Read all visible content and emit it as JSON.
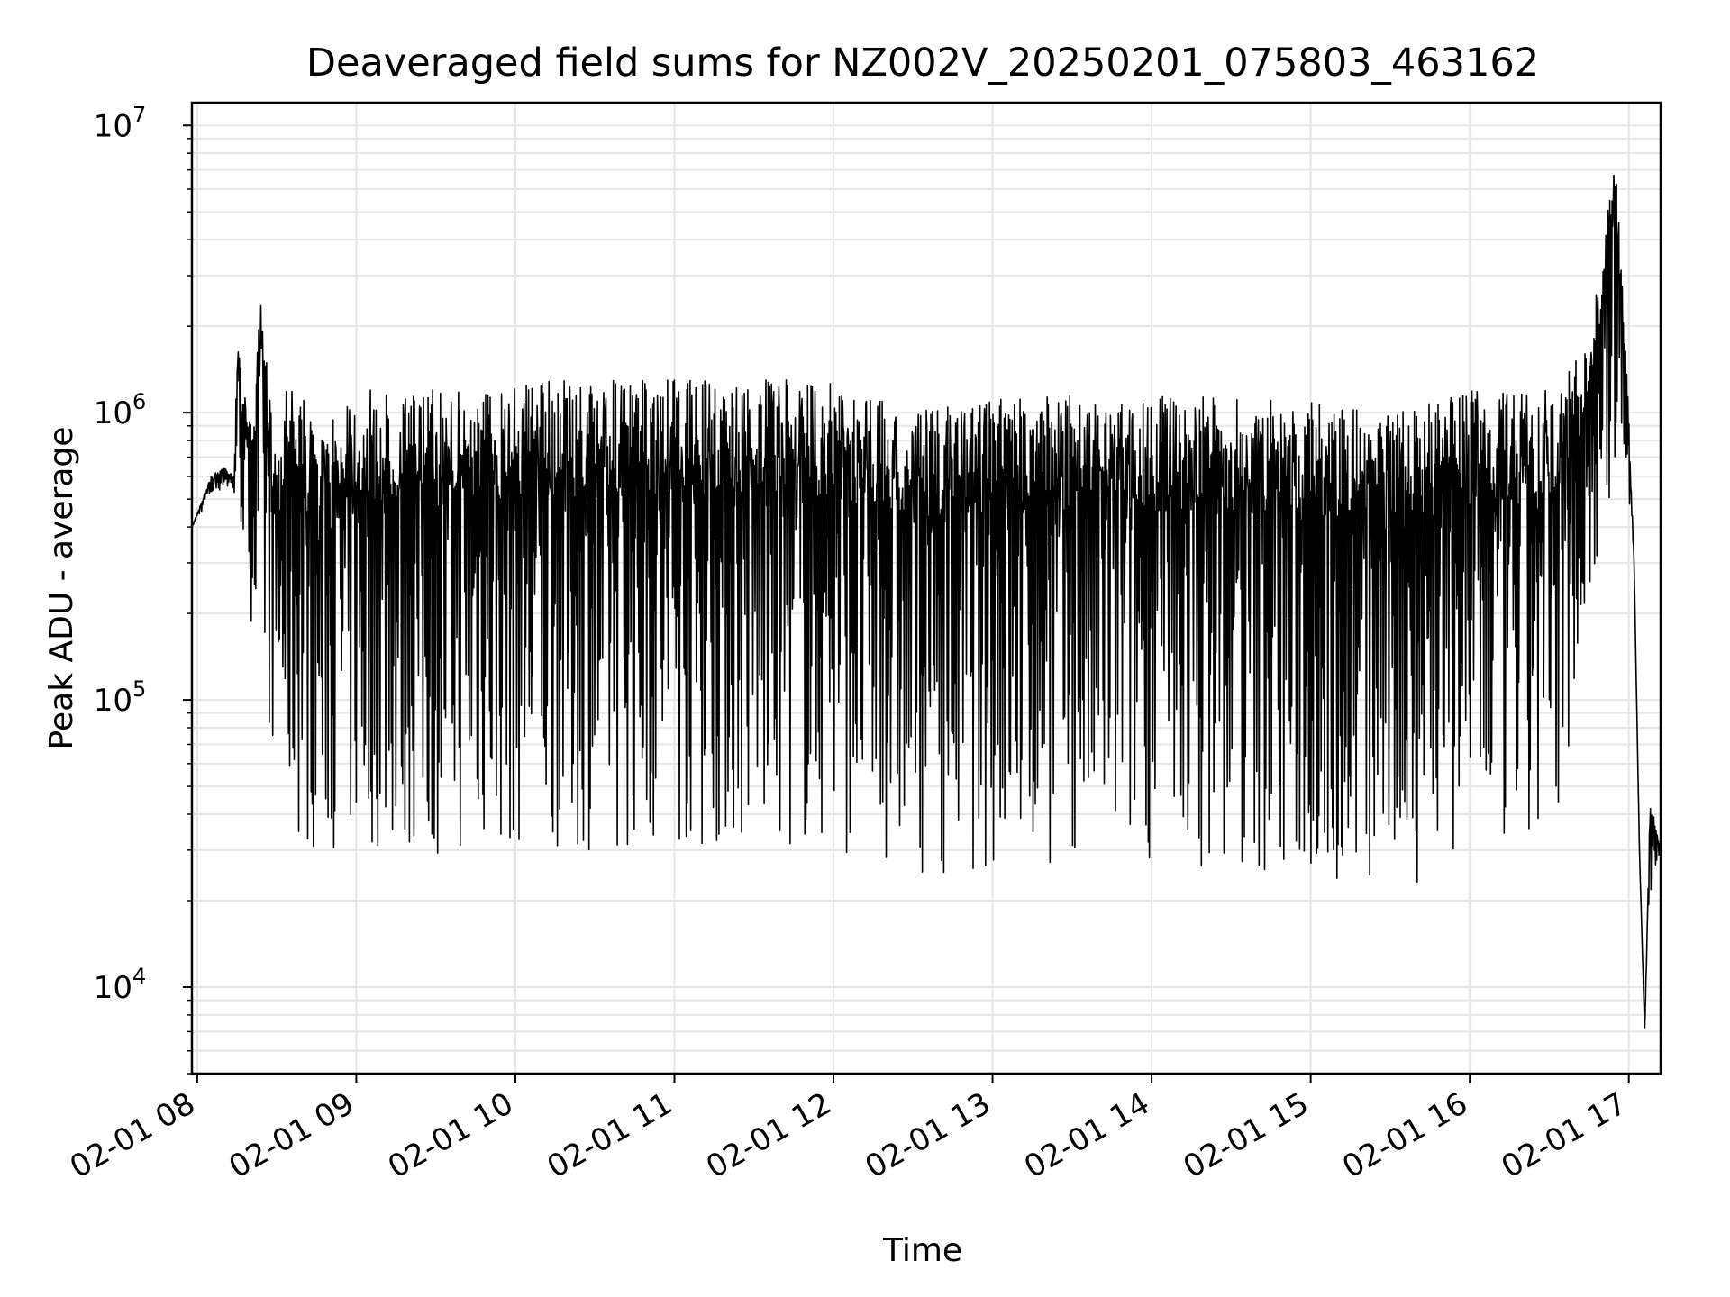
{
  "chart_data": {
    "type": "line",
    "title": "Deaveraged field sums for NZ002V_20250201_075803_463162",
    "xlabel": "Time",
    "ylabel": "Peak ADU - average",
    "y_scale": "log",
    "ylim": [
      5000,
      12000000
    ],
    "xlim": [
      "2025-02-01 07:58",
      "2025-02-01 17:12"
    ],
    "grid": true,
    "line_color": "#000000",
    "x_ticks": [
      {
        "time": "2025-02-01 08:00",
        "label": "02-01 08"
      },
      {
        "time": "2025-02-01 09:00",
        "label": "02-01 09"
      },
      {
        "time": "2025-02-01 10:00",
        "label": "02-01 10"
      },
      {
        "time": "2025-02-01 11:00",
        "label": "02-01 11"
      },
      {
        "time": "2025-02-01 12:00",
        "label": "02-01 12"
      },
      {
        "time": "2025-02-01 13:00",
        "label": "02-01 13"
      },
      {
        "time": "2025-02-01 14:00",
        "label": "02-01 14"
      },
      {
        "time": "2025-02-01 15:00",
        "label": "02-01 15"
      },
      {
        "time": "2025-02-01 16:00",
        "label": "02-01 16"
      },
      {
        "time": "2025-02-01 17:00",
        "label": "02-01 17"
      }
    ],
    "y_ticks": [
      {
        "value": 10000,
        "base": "10",
        "exp": "4"
      },
      {
        "value": 100000,
        "base": "10",
        "exp": "5"
      },
      {
        "value": 1000000,
        "base": "10",
        "exp": "6"
      },
      {
        "value": 10000000,
        "base": "10",
        "exp": "7"
      }
    ],
    "series": [
      {
        "x": [
          "2025-02-01 07:58",
          "2025-02-01 08:05",
          "2025-02-01 08:10",
          "2025-02-01 08:14",
          "2025-02-01 08:15",
          "2025-02-01 08:20",
          "2025-02-01 08:24",
          "2025-02-01 08:30",
          "2025-02-01 08:35",
          "2025-02-01 08:40",
          "2025-02-01 08:45",
          "2025-02-01 09:00",
          "2025-02-01 09:30",
          "2025-02-01 10:00",
          "2025-02-01 11:00",
          "2025-02-01 12:00",
          "2025-02-01 12:30",
          "2025-02-01 13:00",
          "2025-02-01 14:00",
          "2025-02-01 15:00",
          "2025-02-01 15:30",
          "2025-02-01 16:00",
          "2025-02-01 16:30",
          "2025-02-01 16:45",
          "2025-02-01 16:55",
          "2025-02-01 17:00",
          "2025-02-01 17:02",
          "2025-02-01 17:04",
          "2025-02-01 17:06",
          "2025-02-01 17:08",
          "2025-02-01 17:12"
        ],
        "y": [
          400000,
          600000,
          650000,
          620000,
          1800000,
          900000,
          2400000,
          700000,
          1500000,
          1200000,
          800000,
          1200000,
          1200000,
          1300000,
          1300000,
          1300000,
          1000000,
          1150000,
          1150000,
          1100000,
          1000000,
          1200000,
          1200000,
          1700000,
          8000000,
          1000000,
          300000,
          30000,
          7000,
          50000,
          30000
        ],
        "min_envelope": [
          400000,
          500000,
          550000,
          500000,
          500000,
          200000,
          100000,
          60000,
          35000,
          30000,
          30000,
          30000,
          28000,
          30000,
          30000,
          30000,
          25000,
          25000,
          28000,
          22000,
          20000,
          30000,
          25000,
          200000,
          600000,
          500000,
          300000,
          30000,
          7000,
          20000,
          30000
        ]
      }
    ]
  }
}
